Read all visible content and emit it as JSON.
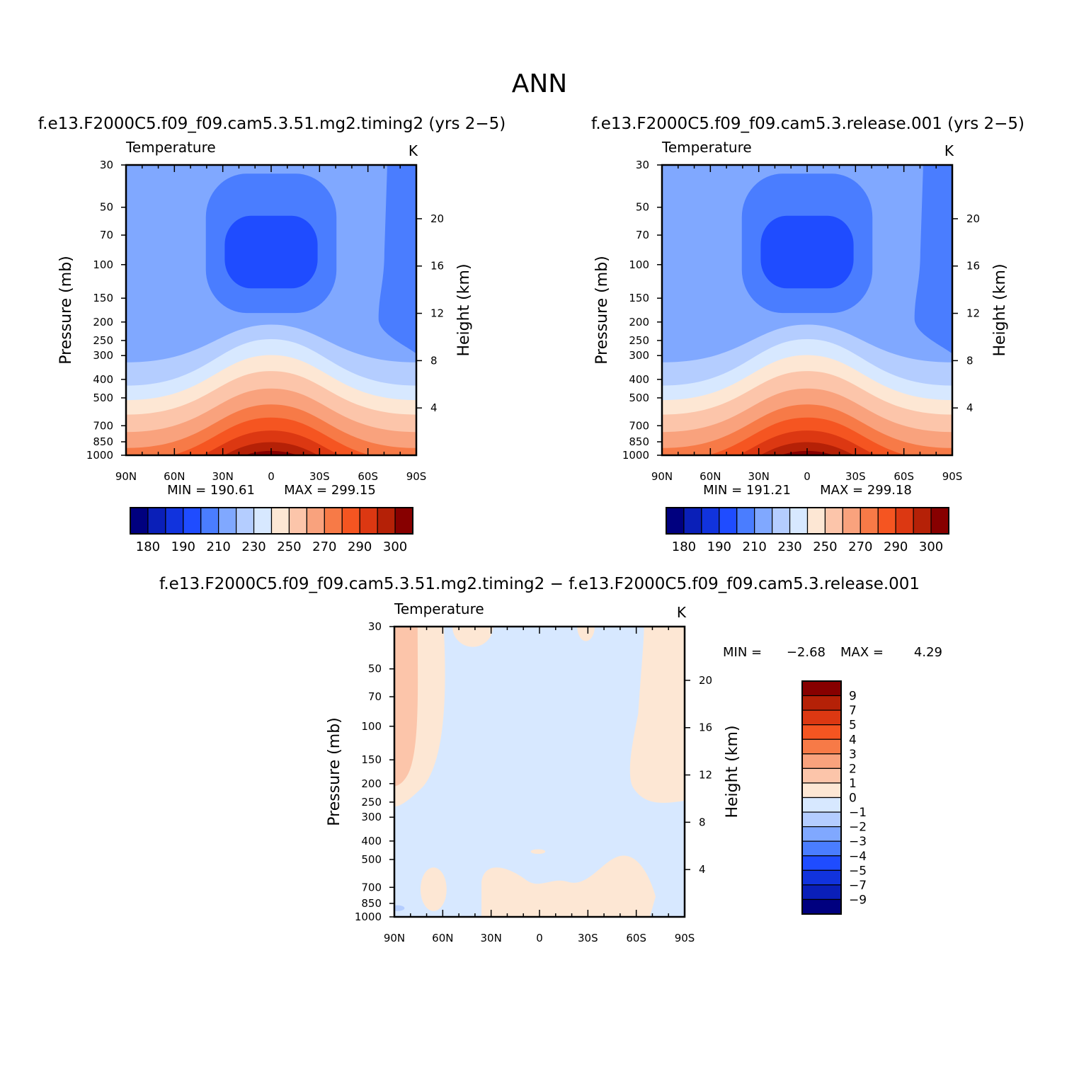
{
  "page_title": "ANN",
  "panels": [
    {
      "id": "case1",
      "title": "f.e13.F2000C5.f09_f09.cam5.3.51.mg2.timing2 (yrs 2−5)",
      "left_label": "Temperature",
      "right_label": "K",
      "min_label": "MIN = 190.61",
      "max_label": "MAX = 299.15"
    },
    {
      "id": "case2",
      "title": "f.e13.F2000C5.f09_f09.cam5.3.release.001 (yrs 2−5)",
      "left_label": "Temperature",
      "right_label": "K",
      "min_label": "MIN = 191.21",
      "max_label": "MAX = 299.18"
    },
    {
      "id": "diff",
      "title": "f.e13.F2000C5.f09_f09.cam5.3.51.mg2.timing2 − f.e13.F2000C5.f09_f09.cam5.3.release.001",
      "left_label": "Temperature",
      "right_label": "K",
      "min_label": "MIN =",
      "min_value": "−2.68",
      "max_label": "MAX =",
      "max_value": "4.29"
    }
  ],
  "chart_data": {
    "type": "heatmap",
    "x_axis": {
      "ticks": [
        "90N",
        "60N",
        "30N",
        "0",
        "30S",
        "60S",
        "90S"
      ],
      "range": [
        90,
        -90
      ]
    },
    "y_axis": {
      "label": "Pressure (mb)",
      "scale": "log",
      "range": [
        1000,
        30
      ],
      "ticks": [
        "30",
        "50",
        "70",
        "100",
        "150",
        "200",
        "250",
        "300",
        "400",
        "500",
        "700",
        "850",
        "1000"
      ]
    },
    "y2_axis": {
      "label": "Height (km)",
      "ticks": [
        "4",
        "8",
        "12",
        "16",
        "20"
      ]
    },
    "main_colorbar": {
      "orientation": "horizontal",
      "labels": [
        "180",
        "190",
        "210",
        "230",
        "250",
        "270",
        "290",
        "300"
      ],
      "colors": [
        "#00007f",
        "#0a1fb8",
        "#1133dd",
        "#1f4cff",
        "#4a7dff",
        "#80a8ff",
        "#b4cdff",
        "#d7e8ff",
        "#fde7d4",
        "#fcc5aa",
        "#f9a27d",
        "#f77a47",
        "#f55521",
        "#dc3812",
        "#b52107",
        "#870000"
      ]
    },
    "diff_colorbar": {
      "orientation": "vertical",
      "labels": [
        "9",
        "7",
        "5",
        "4",
        "3",
        "2",
        "1",
        "0",
        "−1",
        "−2",
        "−3",
        "−4",
        "−5",
        "−7",
        "−9"
      ],
      "colors": [
        "#870000",
        "#b52107",
        "#dc3812",
        "#f55521",
        "#f77a47",
        "#f9a27d",
        "#fcc5aa",
        "#fde7d4",
        "#d7e8ff",
        "#b4cdff",
        "#80a8ff",
        "#4a7dff",
        "#1f4cff",
        "#1133dd",
        "#0a1fb8",
        "#00007f"
      ]
    }
  }
}
